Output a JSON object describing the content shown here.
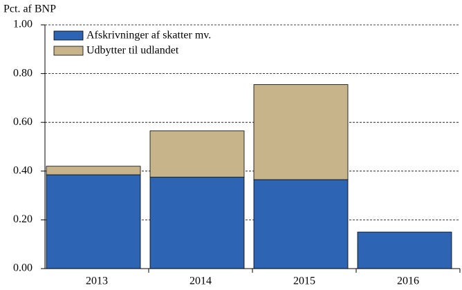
{
  "chart_data": {
    "type": "stacked_bar",
    "ylabel": "Pct. af BNP",
    "categories": [
      "2013",
      "2014",
      "2015",
      "2016"
    ],
    "series": [
      {
        "name": "Afskrivninger af skatter mv.",
        "color": "#2e64b4",
        "values": [
          0.385,
          0.375,
          0.365,
          0.15
        ]
      },
      {
        "name": "Udbytter til udlandet",
        "color": "#c8b48a",
        "values": [
          0.035,
          0.19,
          0.39,
          0
        ]
      }
    ],
    "ylim": [
      0,
      1
    ],
    "yticks": [
      {
        "value": 0,
        "label": "0.00"
      },
      {
        "value": 0.2,
        "label": "0.20"
      },
      {
        "value": 0.4,
        "label": "0.40"
      },
      {
        "value": 0.6,
        "label": "0.60"
      },
      {
        "value": 0.8,
        "label": "0.80"
      },
      {
        "value": 1,
        "label": "1.00"
      }
    ],
    "grid": true,
    "legend": "upper left"
  }
}
